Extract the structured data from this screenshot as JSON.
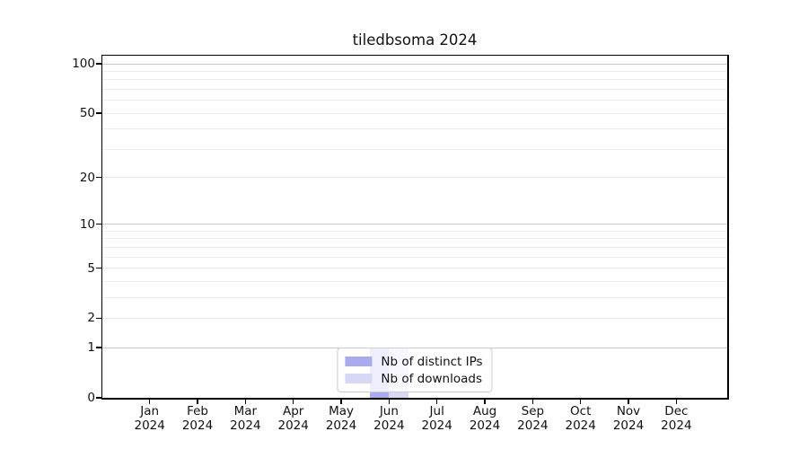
{
  "chart_data": {
    "type": "bar",
    "title": "tiledbsoma 2024",
    "x_categories": [
      "Jan",
      "Feb",
      "Mar",
      "Apr",
      "May",
      "Jun",
      "Jul",
      "Aug",
      "Sep",
      "Oct",
      "Nov",
      "Dec"
    ],
    "x_year": "2024",
    "series": [
      {
        "name": "Nb of distinct IPs",
        "color": "#aaaaee",
        "values": [
          0,
          0,
          0,
          0,
          0,
          1,
          0,
          0,
          0,
          0,
          0,
          0
        ]
      },
      {
        "name": "Nb of downloads",
        "color": "#d8d8f6",
        "values": [
          0,
          0,
          0,
          0,
          0,
          1,
          0,
          0,
          0,
          0,
          0,
          0
        ]
      }
    ],
    "y_scale": "log1p",
    "ylim": [
      0,
      100
    ],
    "y_ticks": [
      0,
      1,
      2,
      5,
      10,
      20,
      50,
      100
    ],
    "y_major_gridlines": [
      1,
      10,
      100
    ],
    "y_minor_gridlines": [
      2,
      3,
      4,
      5,
      6,
      7,
      8,
      9,
      20,
      30,
      40,
      50,
      60,
      70,
      80,
      90
    ],
    "grid": "on",
    "legend_position": "lower center",
    "colors": {
      "major_grid": "#c8c8c8",
      "minor_grid": "#ededed",
      "axis": "#000000",
      "text": "#111111",
      "background": "#ffffff"
    }
  }
}
